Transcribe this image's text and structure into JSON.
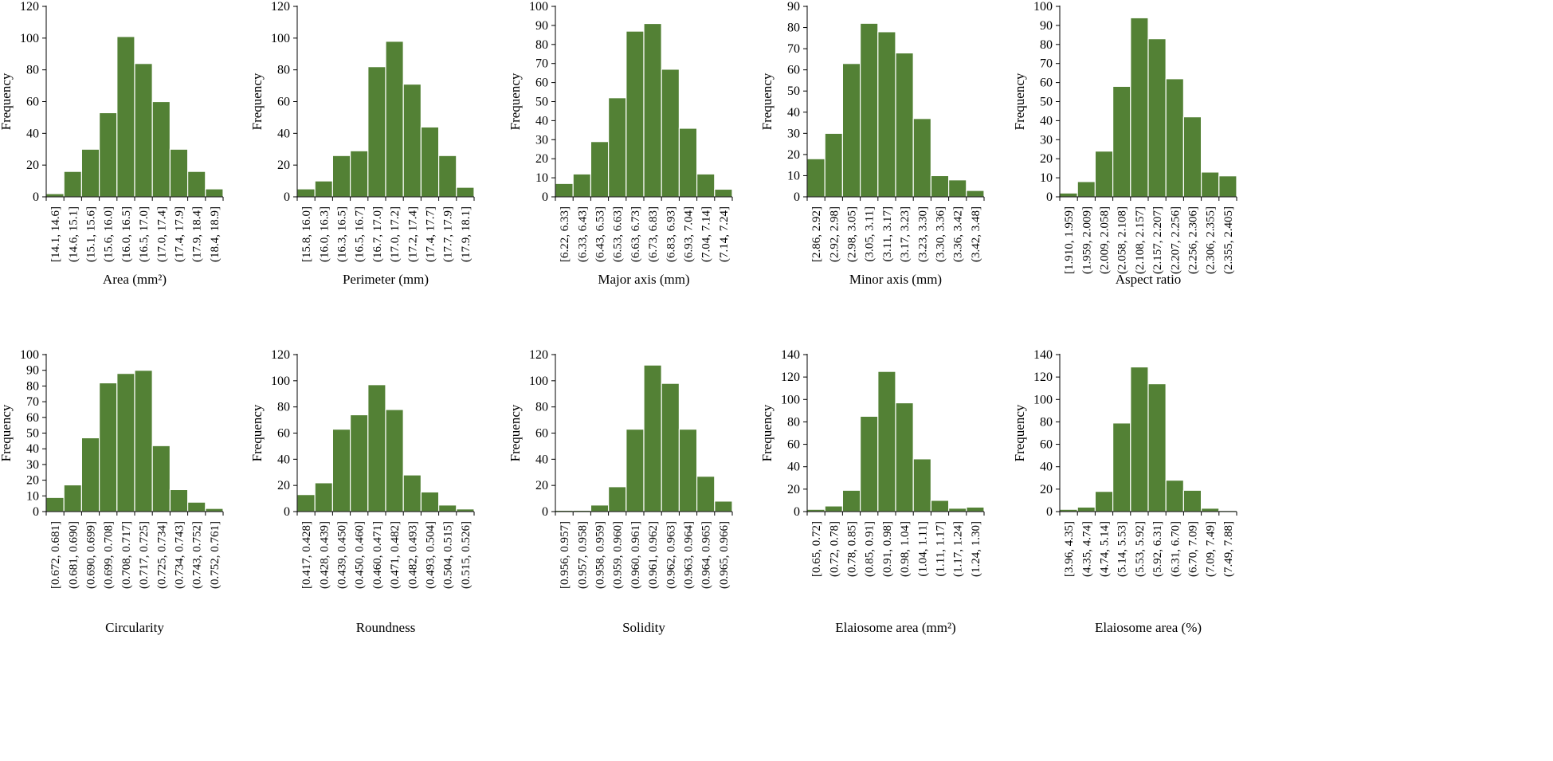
{
  "colors": {
    "bar_fill": "#538135",
    "bar_stroke": "#ffffff",
    "axis": "#000000"
  },
  "chart_data": [
    {
      "type": "bar",
      "xlabel": "Area (mm²)",
      "ylabel": "Frequency",
      "ylim": [
        0,
        120
      ],
      "yticks": [
        0,
        20,
        40,
        60,
        80,
        100,
        120
      ],
      "categories": [
        "[14.1, 14.6]",
        "(14.6, 15.1]",
        "(15.1, 15.6]",
        "(15.6, 16.0]",
        "(16.0, 16.5]",
        "(16.5, 17.0]",
        "(17.0, 17.4]",
        "(17.4, 17.9]",
        "(17.9, 18.4]",
        "(18.4, 18.9]"
      ],
      "values": [
        2,
        16,
        30,
        53,
        101,
        84,
        60,
        30,
        16,
        5
      ]
    },
    {
      "type": "bar",
      "xlabel": "Perimeter (mm)",
      "ylabel": "Frequency",
      "ylim": [
        0,
        120
      ],
      "yticks": [
        0,
        20,
        40,
        60,
        80,
        100,
        120
      ],
      "categories": [
        "[15.8, 16.0]",
        "(16.0, 16.3]",
        "(16.3, 16.5]",
        "(16.5, 16.7]",
        "(16.7, 17.0]",
        "(17.0, 17.2]",
        "(17.2, 17.4]",
        "(17.4, 17.7]",
        "(17.7, 17.9]",
        "(17.9, 18.1]"
      ],
      "values": [
        5,
        10,
        26,
        29,
        82,
        98,
        71,
        44,
        26,
        6
      ]
    },
    {
      "type": "bar",
      "xlabel": "Major axis (mm)",
      "ylabel": "Frequency",
      "ylim": [
        0,
        100
      ],
      "yticks": [
        0,
        10,
        20,
        30,
        40,
        50,
        60,
        70,
        80,
        90,
        100
      ],
      "categories": [
        "[6.22, 6.33]",
        "(6.33, 6.43]",
        "(6.43, 6.53]",
        "(6.53, 6.63]",
        "(6.63, 6.73]",
        "(6.73, 6.83]",
        "(6.83, 6.93]",
        "(6.93, 7.04]",
        "(7.04, 7.14]",
        "(7.14, 7.24]"
      ],
      "values": [
        7,
        12,
        29,
        52,
        87,
        91,
        67,
        36,
        12,
        4
      ]
    },
    {
      "type": "bar",
      "xlabel": "Minor axis (mm)",
      "ylabel": "Frequency",
      "ylim": [
        0,
        90
      ],
      "yticks": [
        0,
        10,
        20,
        30,
        40,
        50,
        60,
        70,
        80,
        90
      ],
      "categories": [
        "[2.86, 2.92]",
        "(2.92, 2.98]",
        "(2.98, 3.05]",
        "(3.05, 3.11]",
        "(3.11, 3.17]",
        "(3.17, 3.23]",
        "(3.23, 3.30]",
        "(3.30, 3.36]",
        "(3.36, 3.42]",
        "(3.42, 3.48]"
      ],
      "values": [
        18,
        30,
        63,
        82,
        78,
        68,
        37,
        10,
        8,
        3
      ]
    },
    {
      "type": "bar",
      "xlabel": "Aspect ratio",
      "ylabel": "Frequency",
      "ylim": [
        0,
        100
      ],
      "yticks": [
        0,
        10,
        20,
        30,
        40,
        50,
        60,
        70,
        80,
        90,
        100
      ],
      "categories": [
        "[1.910, 1.959]",
        "(1.959, 2.009]",
        "(2.009, 2.058]",
        "(2.058, 2.108]",
        "(2.108, 2.157]",
        "(2.157, 2.207]",
        "(2.207, 2.256]",
        "(2.256, 2.306]",
        "(2.306, 2.355]",
        "(2.355, 2.405]"
      ],
      "values": [
        2,
        8,
        24,
        58,
        94,
        83,
        62,
        42,
        13,
        11
      ]
    },
    {
      "type": "bar",
      "xlabel": "Circularity",
      "ylabel": "Frequency",
      "ylim": [
        0,
        100
      ],
      "yticks": [
        0,
        10,
        20,
        30,
        40,
        50,
        60,
        70,
        80,
        90,
        100
      ],
      "categories": [
        "[0.672, 0.681]",
        "(0.681, 0.690]",
        "(0.690, 0.699]",
        "(0.699, 0.708]",
        "(0.708, 0.717]",
        "(0.717, 0.725]",
        "(0.725, 0.734]",
        "(0.734, 0.743]",
        "(0.743, 0.752]",
        "(0.752, 0.761]"
      ],
      "values": [
        9,
        17,
        47,
        82,
        88,
        90,
        42,
        14,
        6,
        2
      ]
    },
    {
      "type": "bar",
      "xlabel": "Roundness",
      "ylabel": "Frequency",
      "ylim": [
        0,
        120
      ],
      "yticks": [
        0,
        20,
        40,
        60,
        80,
        100,
        120
      ],
      "categories": [
        "[0.417, 0.428]",
        "(0.428, 0.439]",
        "(0.439, 0.450]",
        "(0.450, 0.460]",
        "(0.460, 0.471]",
        "(0.471, 0.482]",
        "(0.482, 0.493]",
        "(0.493, 0.504]",
        "(0.504, 0.515]",
        "(0.515, 0.526]"
      ],
      "values": [
        13,
        22,
        63,
        74,
        97,
        78,
        28,
        15,
        5,
        2
      ]
    },
    {
      "type": "bar",
      "xlabel": "Solidity",
      "ylabel": "Frequency",
      "ylim": [
        0,
        120
      ],
      "yticks": [
        0,
        20,
        40,
        60,
        80,
        100,
        120
      ],
      "categories": [
        "[0.956, 0.957]",
        "(0.957, 0.958]",
        "(0.958, 0.959]",
        "(0.959, 0.960]",
        "(0.960, 0.961]",
        "(0.961, 0.962]",
        "(0.962, 0.963]",
        "(0.963, 0.964]",
        "(0.964, 0.965]",
        "(0.965, 0.966]"
      ],
      "values": [
        1,
        1,
        5,
        19,
        63,
        112,
        98,
        63,
        27,
        8
      ]
    },
    {
      "type": "bar",
      "xlabel": "Elaiosome area (mm²)",
      "ylabel": "Frequency",
      "ylim": [
        0,
        140
      ],
      "yticks": [
        0,
        20,
        40,
        60,
        80,
        100,
        120,
        140
      ],
      "categories": [
        "[0.65, 0.72]",
        "(0.72, 0.78]",
        "(0.78, 0.85]",
        "(0.85, 0.91]",
        "(0.91, 0.98]",
        "(0.98, 1.04]",
        "(1.04, 1.11]",
        "(1.11, 1.17]",
        "(1.17, 1.24]",
        "(1.24, 1.30]"
      ],
      "values": [
        2,
        5,
        19,
        85,
        125,
        97,
        47,
        10,
        3,
        4
      ]
    },
    {
      "type": "bar",
      "xlabel": "Elaiosome area (%)",
      "ylabel": "Frequency",
      "ylim": [
        0,
        140
      ],
      "yticks": [
        0,
        20,
        40,
        60,
        80,
        100,
        120,
        140
      ],
      "categories": [
        "[3.96, 4.35]",
        "(4.35, 4.74]",
        "(4.74, 5.14]",
        "(5.14, 5.53]",
        "(5.53, 5.92]",
        "(5.92, 6.31]",
        "(6.31, 6.70]",
        "(6.70, 7.09]",
        "(7.09, 7.49]",
        "(7.49, 7.88]"
      ],
      "values": [
        2,
        4,
        18,
        79,
        129,
        114,
        28,
        19,
        3,
        1
      ]
    }
  ]
}
